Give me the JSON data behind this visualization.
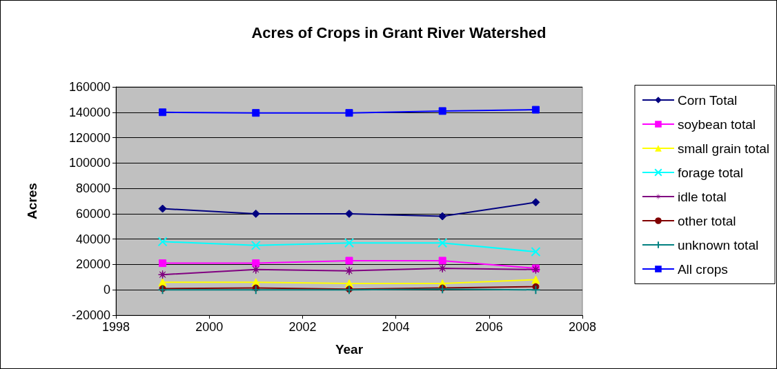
{
  "chart_data": {
    "type": "line",
    "title": "Acres of Crops in Grant River Watershed",
    "xlabel": "Year",
    "ylabel": "Acres",
    "x": [
      1999,
      2001,
      2003,
      2005,
      2007
    ],
    "xlim": [
      1998,
      2008
    ],
    "xticks": [
      1998,
      2000,
      2002,
      2004,
      2006,
      2008
    ],
    "ylim": [
      -20000,
      160000
    ],
    "yticks": [
      -20000,
      0,
      20000,
      40000,
      60000,
      80000,
      100000,
      120000,
      140000,
      160000
    ],
    "grid": "y",
    "legend": "right",
    "line_style": "solid",
    "series": [
      {
        "name": "Corn Total",
        "color": "#000080",
        "marker": "diamond",
        "values": [
          64000,
          60000,
          60000,
          58000,
          69000
        ]
      },
      {
        "name": "soybean total",
        "color": "#ff00ff",
        "marker": "square",
        "values": [
          21000,
          21000,
          23000,
          23000,
          17000
        ]
      },
      {
        "name": "small grain total",
        "color": "#ffff00",
        "marker": "triangle",
        "values": [
          6000,
          6000,
          5000,
          5000,
          8000
        ]
      },
      {
        "name": "forage total",
        "color": "#00ffff",
        "marker": "cross",
        "values": [
          38000,
          35000,
          37000,
          37000,
          30000
        ]
      },
      {
        "name": "idle total",
        "color": "#800080",
        "marker": "star",
        "values": [
          12000,
          16000,
          15000,
          17000,
          16000
        ]
      },
      {
        "name": "other total",
        "color": "#800000",
        "marker": "circle",
        "values": [
          1000,
          1500,
          500,
          1500,
          2500
        ]
      },
      {
        "name": "unknown total",
        "color": "#008080",
        "marker": "plus",
        "values": [
          0,
          0,
          0,
          500,
          0
        ]
      },
      {
        "name": "All crops",
        "color": "#0000ff",
        "marker": "square",
        "values": [
          140000,
          139500,
          139500,
          141000,
          142000
        ]
      }
    ]
  }
}
